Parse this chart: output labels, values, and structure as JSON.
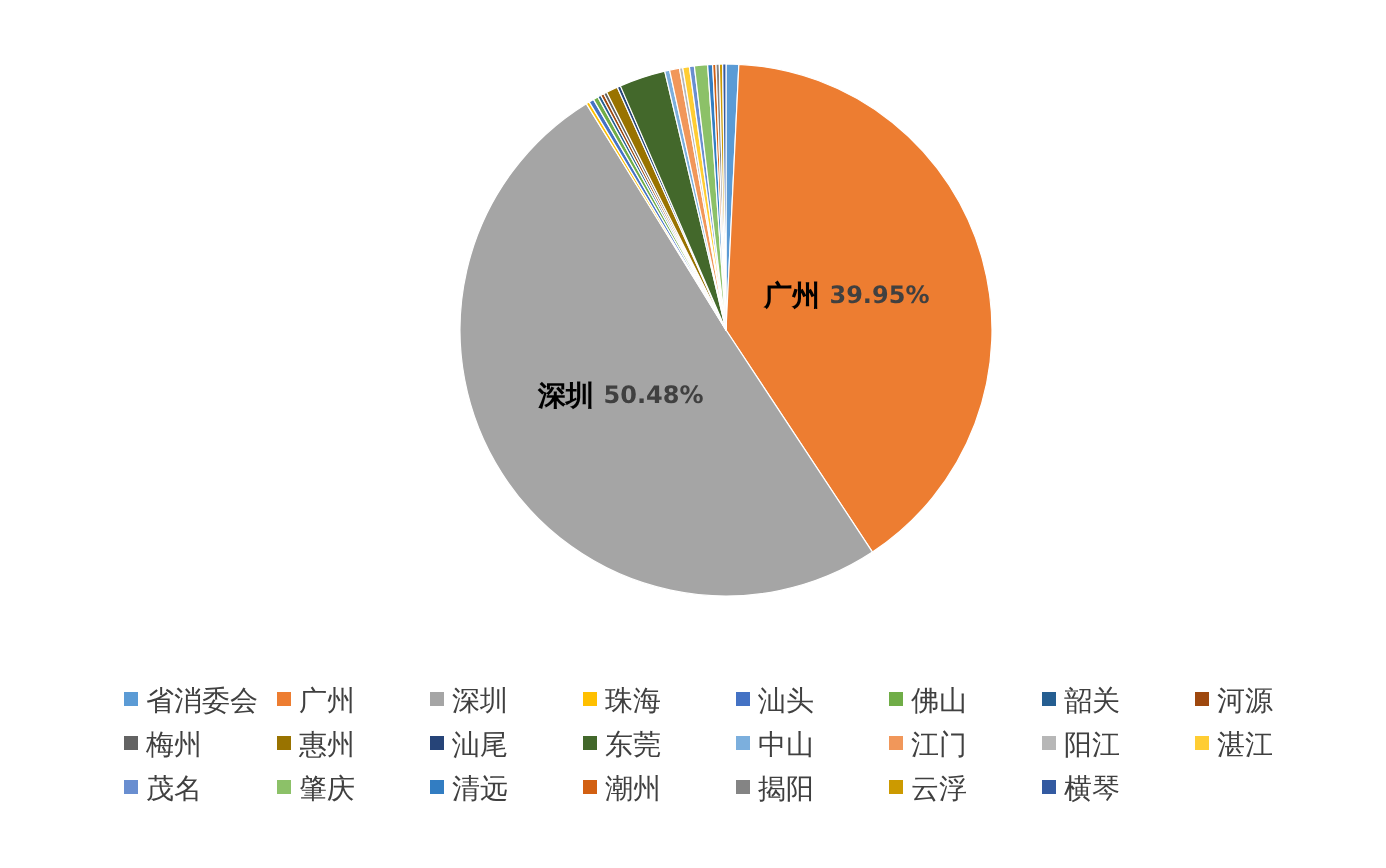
{
  "chart_data": {
    "type": "pie",
    "categories": [
      "省消委会",
      "广州",
      "深圳",
      "珠海",
      "汕头",
      "佛山",
      "韶关",
      "河源",
      "梅州",
      "惠州",
      "汕尾",
      "东莞",
      "中山",
      "江门",
      "阳江",
      "湛江",
      "茂名",
      "肇庆",
      "清远",
      "潮州",
      "揭阳",
      "云浮",
      "横琴"
    ],
    "values": [
      0.77,
      39.95,
      50.48,
      0.2,
      0.3,
      0.3,
      0.2,
      0.2,
      0.2,
      0.7,
      0.2,
      2.8,
      0.3,
      0.6,
      0.2,
      0.4,
      0.3,
      0.8,
      0.3,
      0.2,
      0.2,
      0.2,
      0.2
    ],
    "colors": [
      "#5b9bd5",
      "#ed7d31",
      "#a5a5a5",
      "#ffc000",
      "#4472c4",
      "#70ad47",
      "#255e91",
      "#9e480e",
      "#636363",
      "#997300",
      "#264478",
      "#43682b",
      "#7cafdd",
      "#f1975a",
      "#b7b7b7",
      "#ffcd33",
      "#698ed0",
      "#8cc168",
      "#327dc2",
      "#d26012",
      "#848484",
      "#cc9a00",
      "#335aa1"
    ],
    "value_labels": [
      null,
      "39.95%",
      "50.48%",
      null,
      null,
      null,
      null,
      null,
      null,
      null,
      null,
      null,
      null,
      null,
      null,
      null,
      null,
      null,
      null,
      null,
      null,
      null,
      null
    ],
    "legend": "bottom"
  }
}
